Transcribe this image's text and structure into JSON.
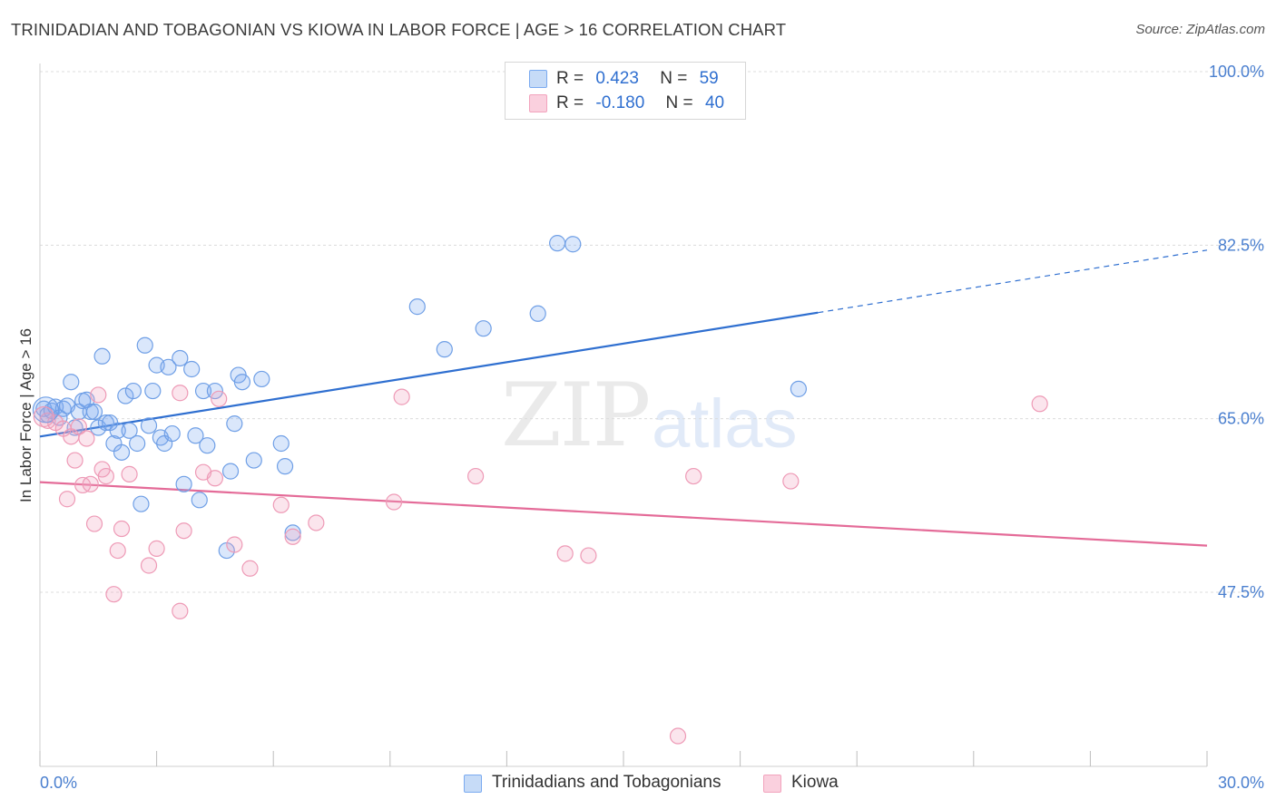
{
  "header": {
    "title": "TRINIDADIAN AND TOBAGONIAN VS KIOWA IN LABOR FORCE | AGE > 16 CORRELATION CHART",
    "source": "Source: ZipAtlas.com"
  },
  "watermark": {
    "zip": "ZIP",
    "atlas": "atlas"
  },
  "legend": {
    "rows": [
      {
        "r_label": "R =",
        "r_value": "0.423",
        "n_label": "N =",
        "n_value": "59"
      },
      {
        "r_label": "R =",
        "r_value": "-0.180",
        "n_label": "N =",
        "n_value": "40"
      }
    ]
  },
  "bottom_legend": {
    "series1": "Trinidadians and Tobagonians",
    "series2": "Kiowa"
  },
  "chart_data": {
    "type": "scatter",
    "title": "TRINIDADIAN AND TOBAGONIAN VS KIOWA IN LABOR FORCE | AGE > 16 CORRELATION CHART",
    "ylabel": "In Labor Force | Age > 16",
    "xlabel": "",
    "xlim": [
      0,
      30
    ],
    "ylim": [
      32,
      102
    ],
    "x_ticks_labels": [
      "0.0%",
      "30.0%"
    ],
    "y_ticks": [
      47.5,
      65.0,
      82.5,
      100.0
    ],
    "y_tick_labels": [
      "47.5%",
      "65.0%",
      "82.5%",
      "100.0%"
    ],
    "grid": true,
    "colors": {
      "blue": "#7aaaf0",
      "blue_line": "#2f6fd0",
      "pink": "#f2a3bd",
      "pink_line": "#e46b98",
      "axis_text": "#4a7fcf"
    },
    "series": [
      {
        "name": "Trinidadians and Tobagonians",
        "color": "#7aaaf0",
        "r": 0.423,
        "n": 59,
        "trend": {
          "x0": 0,
          "y0": 63.2,
          "x1": 20,
          "y1": 75.7,
          "dashed_to_x": 30,
          "dashed_to_y": 82.0
        },
        "points": [
          [
            0.1,
            66.0
          ],
          [
            0.2,
            65.4
          ],
          [
            0.3,
            65.8
          ],
          [
            0.4,
            66.2
          ],
          [
            0.5,
            65.1
          ],
          [
            0.6,
            66.0
          ],
          [
            0.7,
            66.3
          ],
          [
            0.8,
            68.7
          ],
          [
            0.9,
            64.1
          ],
          [
            1.0,
            65.7
          ],
          [
            1.1,
            66.8
          ],
          [
            1.2,
            66.9
          ],
          [
            1.3,
            65.7
          ],
          [
            1.4,
            65.7
          ],
          [
            1.5,
            64.1
          ],
          [
            1.6,
            71.3
          ],
          [
            1.7,
            64.6
          ],
          [
            1.8,
            64.6
          ],
          [
            1.9,
            62.5
          ],
          [
            2.0,
            63.8
          ],
          [
            2.1,
            61.6
          ],
          [
            2.2,
            67.3
          ],
          [
            2.3,
            63.8
          ],
          [
            2.4,
            67.8
          ],
          [
            2.5,
            62.5
          ],
          [
            2.6,
            56.4
          ],
          [
            2.7,
            72.4
          ],
          [
            2.8,
            64.3
          ],
          [
            2.9,
            67.8
          ],
          [
            3.0,
            70.4
          ],
          [
            3.1,
            63.1
          ],
          [
            3.2,
            62.5
          ],
          [
            3.3,
            70.2
          ],
          [
            3.4,
            63.5
          ],
          [
            3.6,
            71.1
          ],
          [
            3.7,
            58.4
          ],
          [
            3.9,
            70.0
          ],
          [
            4.0,
            63.3
          ],
          [
            4.1,
            56.8
          ],
          [
            4.2,
            67.8
          ],
          [
            4.3,
            62.3
          ],
          [
            4.5,
            67.8
          ],
          [
            4.8,
            51.7
          ],
          [
            4.9,
            59.7
          ],
          [
            5.0,
            64.5
          ],
          [
            5.1,
            69.4
          ],
          [
            5.2,
            68.7
          ],
          [
            5.5,
            60.8
          ],
          [
            5.7,
            69.0
          ],
          [
            6.2,
            62.5
          ],
          [
            6.3,
            60.2
          ],
          [
            6.5,
            53.5
          ],
          [
            9.7,
            76.3
          ],
          [
            10.4,
            72.0
          ],
          [
            11.4,
            74.1
          ],
          [
            12.8,
            75.6
          ],
          [
            13.3,
            82.7
          ],
          [
            13.7,
            82.6
          ],
          [
            19.5,
            68.0
          ]
        ]
      },
      {
        "name": "Kiowa",
        "color": "#f2a3bd",
        "r": -0.18,
        "n": 40,
        "trend": {
          "x0": 0,
          "y0": 58.6,
          "x1": 30,
          "y1": 52.2
        },
        "points": [
          [
            0.2,
            64.8
          ],
          [
            0.4,
            64.6
          ],
          [
            0.6,
            64.0
          ],
          [
            0.7,
            56.9
          ],
          [
            0.8,
            63.2
          ],
          [
            0.9,
            60.8
          ],
          [
            1.0,
            64.2
          ],
          [
            1.1,
            58.3
          ],
          [
            1.2,
            63.0
          ],
          [
            1.3,
            58.4
          ],
          [
            1.4,
            54.4
          ],
          [
            1.5,
            67.4
          ],
          [
            1.6,
            59.9
          ],
          [
            1.7,
            59.2
          ],
          [
            1.9,
            47.3
          ],
          [
            2.0,
            51.7
          ],
          [
            2.1,
            53.9
          ],
          [
            2.3,
            59.4
          ],
          [
            2.8,
            50.2
          ],
          [
            3.0,
            51.9
          ],
          [
            3.6,
            67.6
          ],
          [
            3.6,
            45.6
          ],
          [
            3.7,
            53.7
          ],
          [
            4.2,
            59.6
          ],
          [
            4.5,
            59.0
          ],
          [
            4.6,
            67.0
          ],
          [
            5.0,
            52.3
          ],
          [
            5.4,
            49.9
          ],
          [
            6.2,
            56.3
          ],
          [
            6.5,
            53.1
          ],
          [
            7.1,
            54.5
          ],
          [
            9.1,
            56.6
          ],
          [
            9.3,
            67.2
          ],
          [
            11.2,
            59.2
          ],
          [
            13.5,
            51.4
          ],
          [
            14.1,
            51.2
          ],
          [
            16.4,
            33.0
          ],
          [
            16.8,
            59.2
          ],
          [
            19.3,
            58.7
          ],
          [
            25.7,
            66.5
          ]
        ]
      }
    ]
  }
}
